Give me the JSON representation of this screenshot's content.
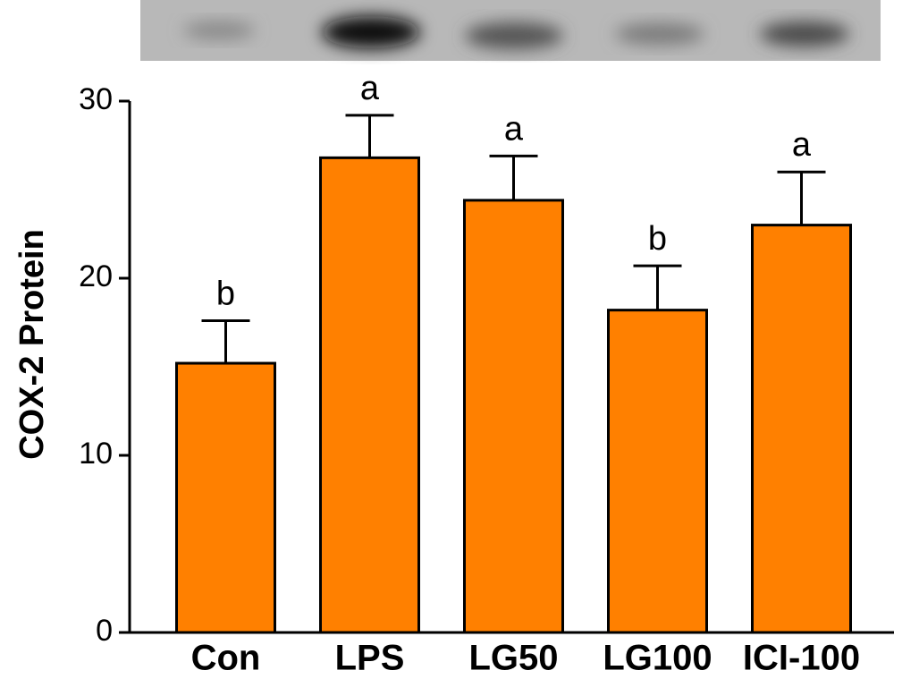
{
  "chart_data": {
    "type": "bar",
    "ylabel": "COX-2 Protein",
    "categories": [
      "Con",
      "LPS",
      "LG50",
      "LG100",
      "ICI-100"
    ],
    "values": [
      15.2,
      26.8,
      24.4,
      18.2,
      23.0
    ],
    "errors": [
      2.4,
      2.4,
      2.5,
      2.5,
      3.0
    ],
    "annotations": [
      "b",
      "a",
      "a",
      "b",
      "a"
    ],
    "color": "#ff8000",
    "ylim": [
      0,
      30
    ],
    "yticks": [
      0,
      10,
      20,
      30
    ]
  }
}
